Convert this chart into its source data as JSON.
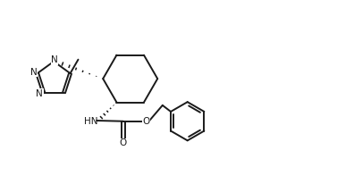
{
  "background_color": "#ffffff",
  "line_color": "#1a1a1a",
  "line_width": 1.4,
  "figsize": [
    3.77,
    2.06
  ],
  "dpi": 100,
  "xlim": [
    0,
    10
  ],
  "ylim": [
    0,
    5.5
  ]
}
